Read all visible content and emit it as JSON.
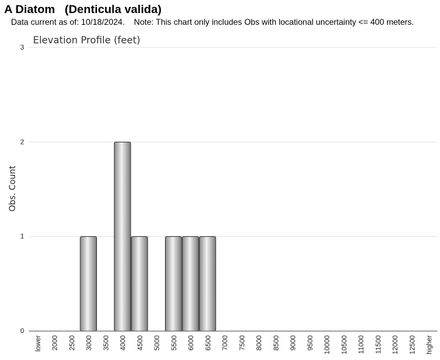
{
  "header": {
    "common_name": "A Diatom",
    "scientific_name": "(Denticula valida)",
    "data_current": "Data current as of: 10/18/2024.",
    "note": "Note: This chart only includes Obs with locational uncertainty <= 400 meters."
  },
  "chart_data": {
    "type": "bar",
    "title": "Elevation Profile (feet)",
    "xlabel": "",
    "ylabel": "Obs. Count",
    "ylim": [
      0,
      3
    ],
    "yticks": [
      0,
      1,
      2,
      3
    ],
    "grid": true,
    "legend": "none",
    "bar_color": "#a9a9a9",
    "categories": [
      "lower",
      "2000",
      "2500",
      "3000",
      "3500",
      "4000",
      "4500",
      "5000",
      "5500",
      "6000",
      "6500",
      "7000",
      "7500",
      "8000",
      "8500",
      "9000",
      "9500",
      "10000",
      "10500",
      "11000",
      "11500",
      "12000",
      "12500",
      "higher"
    ],
    "values": [
      0,
      0,
      0,
      1,
      0,
      2,
      1,
      0,
      1,
      1,
      1,
      0,
      0,
      0,
      0,
      0,
      0,
      0,
      0,
      0,
      0,
      0,
      0,
      0
    ]
  }
}
